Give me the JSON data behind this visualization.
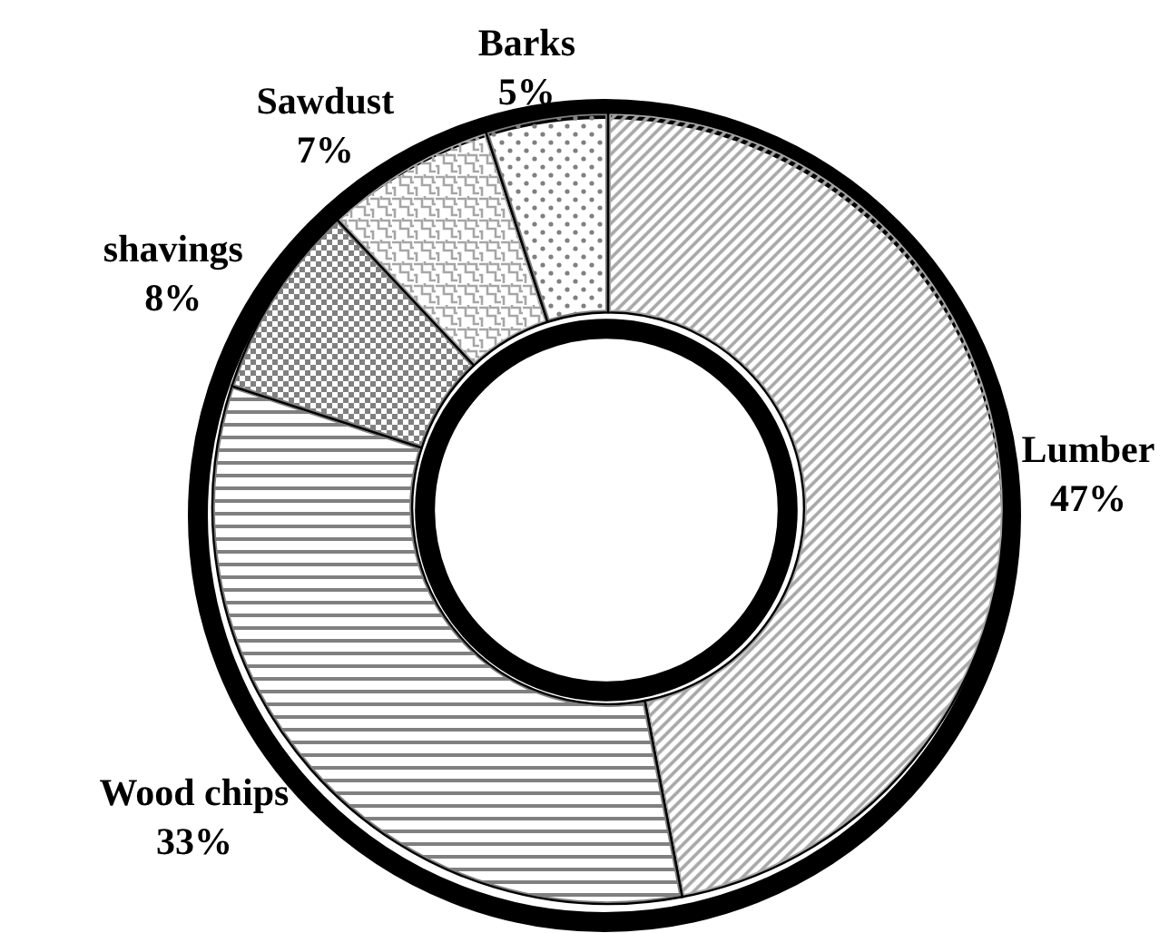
{
  "chart_data": {
    "type": "donut",
    "categories": [
      "Lumber",
      "Wood chips",
      "shavings",
      "Sawdust",
      "Barks"
    ],
    "values": [
      47,
      33,
      8,
      7,
      5
    ],
    "colors": [
      "#a6a6a6",
      "#808080",
      "#808080",
      "#a6a6a6",
      "#808080"
    ],
    "value_labels": [
      "47%",
      "33%",
      "8%",
      "7%",
      "5%"
    ]
  }
}
